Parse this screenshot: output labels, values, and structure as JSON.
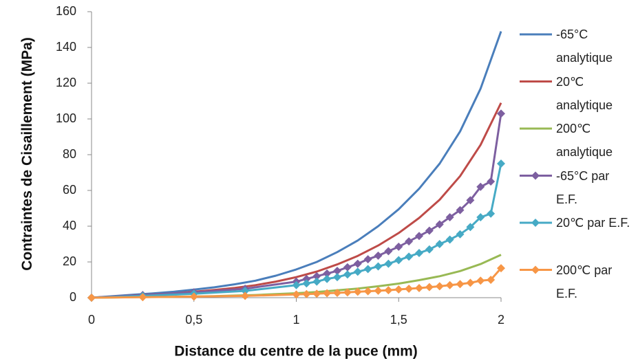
{
  "chart_data": {
    "type": "line",
    "xlabel": "Distance du centre de la puce (mm)",
    "ylabel": "Contraintes de Cisaillement (MPa)",
    "xlim": [
      0,
      2
    ],
    "xticks": [
      0,
      {
        "value": 0.5,
        "label": "0,5"
      },
      1,
      {
        "value": 1.5,
        "label": "1,5"
      },
      2
    ],
    "ylim": [
      0,
      160
    ],
    "yticks": [
      0,
      20,
      40,
      60,
      80,
      100,
      120,
      140,
      160
    ],
    "grid": false,
    "series": [
      {
        "name": "-65°C analytique",
        "color": "#4a7ebb",
        "marker": "none",
        "x": [
          0,
          0.1,
          0.2,
          0.3,
          0.4,
          0.5,
          0.6,
          0.7,
          0.8,
          0.9,
          1,
          1.1,
          1.2,
          1.3,
          1.4,
          1.5,
          1.6,
          1.7,
          1.8,
          1.9,
          2
        ],
        "values": [
          0,
          0.8,
          1.6,
          2.4,
          3.3,
          4.5,
          5.8,
          7.5,
          9.5,
          12.3,
          15.8,
          20,
          25.5,
          32,
          40,
          49.5,
          61,
          75,
          93,
          117,
          149
        ]
      },
      {
        "name": "20℃ analytique",
        "color": "#be4b48",
        "marker": "none",
        "x": [
          0,
          0.1,
          0.2,
          0.3,
          0.4,
          0.5,
          0.6,
          0.7,
          0.8,
          0.9,
          1,
          1.1,
          1.2,
          1.3,
          1.4,
          1.5,
          1.6,
          1.7,
          1.8,
          1.9,
          2
        ],
        "values": [
          0,
          0.6,
          1.2,
          1.8,
          2.4,
          3.3,
          4.3,
          5.5,
          7,
          9,
          11.5,
          14.6,
          18.6,
          23.4,
          29.2,
          36.2,
          44.6,
          54.8,
          68,
          85.5,
          109
        ]
      },
      {
        "name": "200℃ analytique",
        "color": "#98b954",
        "marker": "none",
        "x": [
          0,
          0.1,
          0.2,
          0.3,
          0.4,
          0.5,
          0.6,
          0.7,
          0.8,
          0.9,
          1,
          1.1,
          1.2,
          1.3,
          1.4,
          1.5,
          1.6,
          1.7,
          1.8,
          1.9,
          2
        ],
        "values": [
          0,
          0.1,
          0.3,
          0.4,
          0.5,
          0.7,
          0.9,
          1.2,
          1.5,
          2,
          2.5,
          3.2,
          4.1,
          5.1,
          6.4,
          7.9,
          9.8,
          12,
          14.9,
          18.8,
          24
        ]
      },
      {
        "name": "-65°C par E.F.",
        "color": "#7d5fa0",
        "marker": "diamond",
        "x": [
          0,
          0.25,
          0.5,
          0.75,
          1,
          1.05,
          1.1,
          1.15,
          1.2,
          1.25,
          1.3,
          1.35,
          1.4,
          1.45,
          1.5,
          1.55,
          1.6,
          1.65,
          1.7,
          1.75,
          1.8,
          1.85,
          1.9,
          1.95,
          2
        ],
        "values": [
          0,
          1.5,
          3,
          5,
          9,
          10.5,
          12,
          13.5,
          15,
          17,
          19,
          21.5,
          23.5,
          26,
          28.5,
          31.5,
          34.5,
          37.5,
          41,
          45,
          49,
          54.5,
          62,
          65,
          103
        ]
      },
      {
        "name": "20℃ par E.F.",
        "color": "#46aac5",
        "marker": "diamond",
        "x": [
          0,
          0.25,
          0.5,
          0.75,
          1,
          1.05,
          1.1,
          1.15,
          1.2,
          1.25,
          1.3,
          1.35,
          1.4,
          1.45,
          1.5,
          1.55,
          1.6,
          1.65,
          1.7,
          1.75,
          1.8,
          1.85,
          1.9,
          1.95,
          2
        ],
        "values": [
          0,
          1,
          2.2,
          3.8,
          7,
          8,
          9,
          10.5,
          11.5,
          13,
          14.5,
          16,
          17.5,
          19,
          21,
          23,
          25,
          27,
          30,
          32.5,
          35.5,
          39.5,
          45,
          47,
          75
        ]
      },
      {
        "name": "200℃ par E.F.",
        "color": "#f79646",
        "marker": "diamond",
        "x": [
          0,
          0.25,
          0.5,
          0.75,
          1,
          1.05,
          1.1,
          1.15,
          1.2,
          1.25,
          1.3,
          1.35,
          1.4,
          1.45,
          1.5,
          1.55,
          1.6,
          1.65,
          1.7,
          1.75,
          1.8,
          1.85,
          1.9,
          1.95,
          2
        ],
        "values": [
          0,
          0.3,
          0.6,
          1,
          1.8,
          2,
          2.2,
          2.5,
          2.7,
          3,
          3.3,
          3.6,
          3.9,
          4.2,
          4.6,
          5,
          5.4,
          5.9,
          6.4,
          7,
          7.6,
          8.3,
          9.5,
          10,
          16.5
        ]
      }
    ]
  }
}
